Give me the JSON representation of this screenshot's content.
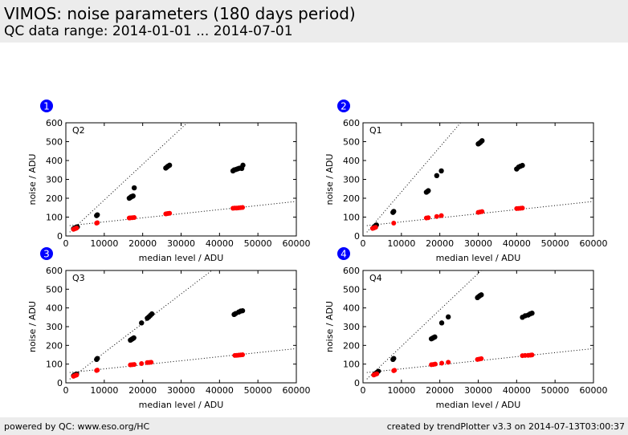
{
  "header": {
    "title": "VIMOS: noise parameters (180 days period)",
    "subtitle": "QC data range: 2014-01-01 ... 2014-07-01"
  },
  "footer": {
    "left": "powered by QC: www.eso.org/HC",
    "right": "created by trendPlotter v3.3 on 2014-07-13T03:00:37"
  },
  "colors": {
    "badge": "#0000ff",
    "black_series": "#000000",
    "red_series": "#ff0000",
    "header_bg": "#ececec"
  },
  "chart_data": [
    {
      "type": "scatter",
      "badge": "1",
      "label": "Q2",
      "xlabel": "median level / ADU",
      "ylabel": "noise / ADU",
      "xlim": [
        0,
        60000
      ],
      "ylim": [
        0,
        600
      ],
      "xticks": [
        "0",
        "10000",
        "20000",
        "30000",
        "40000",
        "50000",
        "60000"
      ],
      "yticks": [
        "0",
        "100",
        "200",
        "300",
        "400",
        "500",
        "600"
      ],
      "series": [
        {
          "color": "black",
          "points": [
            [
              2000,
              38
            ],
            [
              2300,
              42
            ],
            [
              2600,
              45
            ],
            [
              2800,
              47
            ],
            [
              3000,
              48
            ],
            [
              8000,
              108
            ],
            [
              8200,
              112
            ],
            [
              16500,
              200
            ],
            [
              16800,
              204
            ],
            [
              17000,
              208
            ],
            [
              17300,
              210
            ],
            [
              17500,
              212
            ],
            [
              17800,
              255
            ],
            [
              26000,
              360
            ],
            [
              26300,
              365
            ],
            [
              26600,
              370
            ],
            [
              27000,
              375
            ],
            [
              43500,
              345
            ],
            [
              43800,
              350
            ],
            [
              44200,
              352
            ],
            [
              44600,
              355
            ],
            [
              45000,
              358
            ],
            [
              45400,
              360
            ],
            [
              45800,
              358
            ],
            [
              46100,
              375
            ]
          ]
        },
        {
          "color": "red",
          "points": [
            [
              2000,
              35
            ],
            [
              2300,
              38
            ],
            [
              2600,
              40
            ],
            [
              2800,
              42
            ],
            [
              8000,
              68
            ],
            [
              8200,
              70
            ],
            [
              16500,
              95
            ],
            [
              16800,
              96
            ],
            [
              17300,
              97
            ],
            [
              17800,
              98
            ],
            [
              26000,
              117
            ],
            [
              26300,
              118
            ],
            [
              26600,
              119
            ],
            [
              27000,
              120
            ],
            [
              43500,
              147
            ],
            [
              44000,
              148
            ],
            [
              44500,
              148
            ],
            [
              45000,
              149
            ],
            [
              45500,
              150
            ],
            [
              46000,
              151
            ]
          ]
        }
      ],
      "fits": [
        {
          "x": [
            1000,
            31600
          ],
          "y": [
            20,
            600
          ]
        },
        {
          "x": [
            1000,
            60000
          ],
          "y": [
            55,
            183
          ]
        }
      ]
    },
    {
      "type": "scatter",
      "badge": "2",
      "label": "Q1",
      "xlabel": "median level / ADU",
      "ylabel": "noise / ADU",
      "xlim": [
        0,
        60000
      ],
      "ylim": [
        0,
        600
      ],
      "xticks": [
        "0",
        "10000",
        "20000",
        "30000",
        "40000",
        "50000",
        "60000"
      ],
      "yticks": [
        "0",
        "100",
        "200",
        "300",
        "400",
        "500",
        "600"
      ],
      "series": [
        {
          "color": "black",
          "points": [
            [
              2800,
              45
            ],
            [
              3000,
              50
            ],
            [
              3200,
              52
            ],
            [
              3500,
              58
            ],
            [
              7800,
              125
            ],
            [
              8000,
              130
            ],
            [
              16500,
              232
            ],
            [
              16800,
              236
            ],
            [
              17000,
              240
            ],
            [
              19200,
              320
            ],
            [
              20400,
              345
            ],
            [
              30000,
              488
            ],
            [
              30300,
              492
            ],
            [
              30600,
              497
            ],
            [
              31000,
              505
            ],
            [
              40000,
              355
            ],
            [
              40500,
              365
            ],
            [
              41000,
              370
            ],
            [
              41500,
              374
            ]
          ]
        },
        {
          "color": "red",
          "points": [
            [
              2500,
              40
            ],
            [
              2800,
              42
            ],
            [
              3000,
              44
            ],
            [
              3300,
              46
            ],
            [
              8000,
              68
            ],
            [
              16500,
              95
            ],
            [
              17000,
              97
            ],
            [
              19200,
              103
            ],
            [
              20400,
              108
            ],
            [
              30000,
              125
            ],
            [
              30500,
              127
            ],
            [
              31000,
              129
            ],
            [
              40000,
              145
            ],
            [
              40500,
              146
            ],
            [
              41000,
              147
            ],
            [
              41500,
              148
            ]
          ]
        }
      ],
      "fits": [
        {
          "x": [
            1000,
            25400
          ],
          "y": [
            20,
            600
          ]
        },
        {
          "x": [
            1000,
            60000
          ],
          "y": [
            55,
            183
          ]
        }
      ]
    },
    {
      "type": "scatter",
      "badge": "3",
      "label": "Q3",
      "xlabel": "median level / ADU",
      "ylabel": "noise / ADU",
      "xlim": [
        0,
        60000
      ],
      "ylim": [
        0,
        600
      ],
      "xticks": [
        "0",
        "10000",
        "20000",
        "30000",
        "40000",
        "50000",
        "60000"
      ],
      "yticks": [
        "0",
        "100",
        "200",
        "300",
        "400",
        "500",
        "600"
      ],
      "series": [
        {
          "color": "black",
          "points": [
            [
              2000,
              38
            ],
            [
              2300,
              42
            ],
            [
              2600,
              45
            ],
            [
              2800,
              47
            ],
            [
              8000,
              125
            ],
            [
              8200,
              130
            ],
            [
              16800,
              228
            ],
            [
              17100,
              232
            ],
            [
              17400,
              236
            ],
            [
              17700,
              240
            ],
            [
              19700,
              320
            ],
            [
              21200,
              345
            ],
            [
              21600,
              352
            ],
            [
              22000,
              360
            ],
            [
              22400,
              368
            ],
            [
              43800,
              365
            ],
            [
              44200,
              370
            ],
            [
              45000,
              378
            ],
            [
              45500,
              383
            ],
            [
              46000,
              385
            ]
          ]
        },
        {
          "color": "red",
          "points": [
            [
              2000,
              35
            ],
            [
              2300,
              38
            ],
            [
              2600,
              40
            ],
            [
              2800,
              42
            ],
            [
              8000,
              66
            ],
            [
              8200,
              68
            ],
            [
              16800,
              96
            ],
            [
              17300,
              97
            ],
            [
              17800,
              98
            ],
            [
              19700,
              103
            ],
            [
              21200,
              108
            ],
            [
              21700,
              109
            ],
            [
              22200,
              110
            ],
            [
              44000,
              146
            ],
            [
              44500,
              147
            ],
            [
              45000,
              148
            ],
            [
              45500,
              149
            ],
            [
              46000,
              150
            ]
          ]
        }
      ],
      "fits": [
        {
          "x": [
            1000,
            38000
          ],
          "y": [
            20,
            600
          ]
        },
        {
          "x": [
            1000,
            60000
          ],
          "y": [
            55,
            183
          ]
        }
      ]
    },
    {
      "type": "scatter",
      "badge": "4",
      "label": "Q4",
      "xlabel": "median level / ADU",
      "ylabel": "noise / ADU",
      "xlim": [
        0,
        60000
      ],
      "ylim": [
        0,
        600
      ],
      "xticks": [
        "0",
        "10000",
        "20000",
        "30000",
        "40000",
        "50000",
        "60000"
      ],
      "yticks": [
        "0",
        "100",
        "200",
        "300",
        "400",
        "500",
        "600"
      ],
      "series": [
        {
          "color": "black",
          "points": [
            [
              3000,
              45
            ],
            [
              3300,
              50
            ],
            [
              3600,
              55
            ],
            [
              4000,
              62
            ],
            [
              7800,
              125
            ],
            [
              8000,
              130
            ],
            [
              17800,
              235
            ],
            [
              18100,
              238
            ],
            [
              18400,
              242
            ],
            [
              18700,
              245
            ],
            [
              20500,
              320
            ],
            [
              22200,
              352
            ],
            [
              29800,
              455
            ],
            [
              30100,
              460
            ],
            [
              30400,
              465
            ],
            [
              30800,
              470
            ],
            [
              41500,
              350
            ],
            [
              42200,
              358
            ],
            [
              43000,
              362
            ],
            [
              43500,
              368
            ],
            [
              44000,
              372
            ]
          ]
        },
        {
          "color": "red",
          "points": [
            [
              2800,
              42
            ],
            [
              3000,
              44
            ],
            [
              3300,
              46
            ],
            [
              3600,
              48
            ],
            [
              8000,
              65
            ],
            [
              8200,
              67
            ],
            [
              17800,
              97
            ],
            [
              18300,
              98
            ],
            [
              18800,
              100
            ],
            [
              20500,
              105
            ],
            [
              22200,
              110
            ],
            [
              29800,
              125
            ],
            [
              30300,
              127
            ],
            [
              30800,
              129
            ],
            [
              41500,
              145
            ],
            [
              42200,
              146
            ],
            [
              43000,
              147
            ],
            [
              43600,
              148
            ],
            [
              44000,
              149
            ]
          ]
        }
      ],
      "fits": [
        {
          "x": [
            1000,
            30800
          ],
          "y": [
            20,
            600
          ]
        },
        {
          "x": [
            1000,
            60000
          ],
          "y": [
            55,
            183
          ]
        }
      ]
    }
  ]
}
